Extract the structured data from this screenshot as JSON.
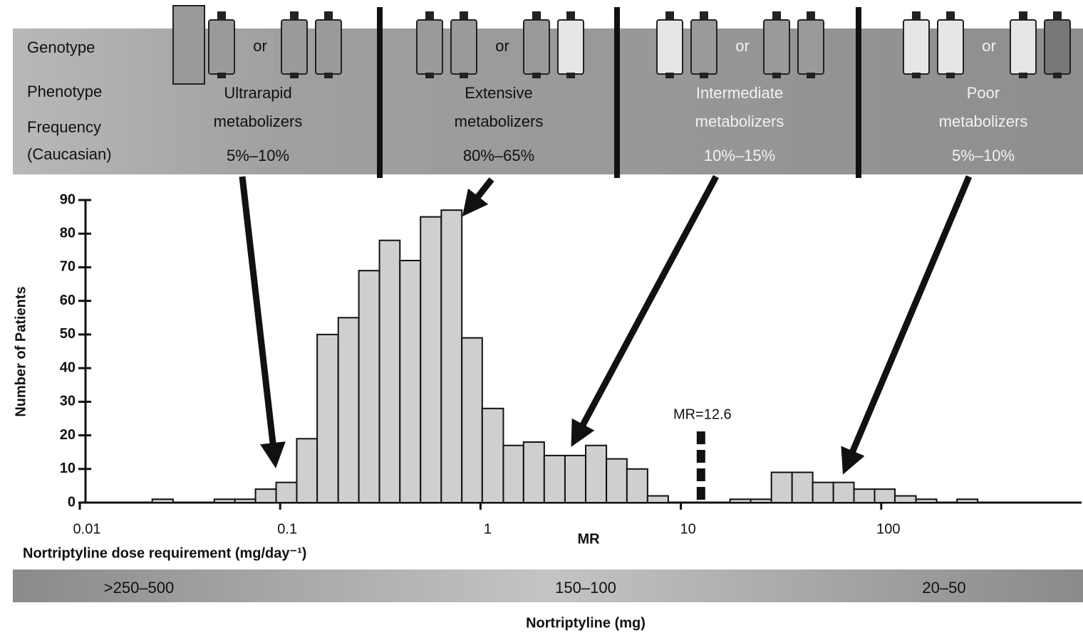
{
  "header": {
    "row_labels": [
      "Genotype",
      "Phenotype",
      "Frequency",
      "(Caucasian)"
    ],
    "or_label": "or",
    "columns": [
      {
        "phenotype": [
          "Ultrarapid",
          "metabolizers"
        ],
        "frequency": "5%–10%"
      },
      {
        "phenotype": [
          "Extensive",
          "metabolizers"
        ],
        "frequency": "80%–65%"
      },
      {
        "phenotype": [
          "Intermediate",
          "metabolizers"
        ],
        "frequency": "10%–15%"
      },
      {
        "phenotype": [
          "Poor",
          "metabolizers"
        ],
        "frequency": "5%–10%"
      }
    ]
  },
  "chart_data": {
    "type": "histogram",
    "bins": [
      0.0182,
      0.023,
      0.0292,
      0.037,
      0.0469,
      0.0594,
      0.0753,
      0.0955,
      0.121,
      0.153,
      0.195,
      0.247,
      0.313,
      0.396,
      0.502,
      0.637,
      0.807,
      1.02,
      1.3,
      1.64,
      2.08,
      2.64,
      3.35,
      4.25,
      5.38,
      6.82,
      8.65,
      11.0,
      13.9,
      17.6,
      22.3,
      28.3,
      35.9,
      45.5,
      57.7,
      73.1,
      92.7,
      117,
      149,
      189,
      239,
      303,
      385
    ],
    "counts": [
      0,
      1,
      0,
      0,
      1,
      1,
      4,
      6,
      19,
      50,
      55,
      69,
      78,
      72,
      85,
      87,
      49,
      28,
      17,
      18,
      14,
      14,
      17,
      13,
      10,
      2,
      0,
      0,
      0,
      1,
      1,
      9,
      9,
      6,
      6,
      4,
      4,
      2,
      1,
      0,
      1,
      0
    ],
    "color": "#cfcfcf",
    "xlim": [
      0.01,
      1000
    ],
    "xticks": [
      0.01,
      0.1,
      1,
      10,
      100
    ],
    "x_scale": "log",
    "ylim": [
      0,
      90
    ],
    "yticks": [
      0,
      10,
      20,
      30,
      40,
      50,
      60,
      70,
      80,
      90
    ],
    "y_label": "Number of Patients",
    "x_label": "MR",
    "x_sublabel": "Nortriptyline dose requirement (mg/day⁻¹)",
    "annotation": {
      "x": 12.6,
      "label": "MR=12.6"
    }
  },
  "dose_band": {
    "labels": [
      ">250–500",
      "150–100",
      "20–50"
    ],
    "title": "Nortriptyline (mg)"
  }
}
